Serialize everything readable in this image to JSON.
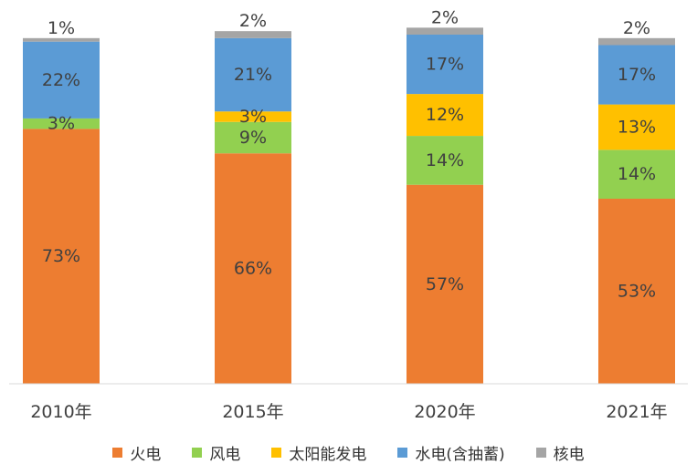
{
  "chart_data": {
    "type": "bar",
    "stacked": true,
    "percent_stacked": true,
    "categories": [
      "2010年",
      "2015年",
      "2020年",
      "2021年"
    ],
    "series": [
      {
        "name": "火电",
        "color": "#ed7d31",
        "values": [
          73,
          66,
          57,
          53
        ],
        "labels": [
          "73%",
          "66%",
          "57%",
          "53%"
        ]
      },
      {
        "name": "风电",
        "color": "#92d050",
        "values": [
          3,
          9,
          14,
          14
        ],
        "labels": [
          "3%",
          "9%",
          "14%",
          "14%"
        ]
      },
      {
        "name": "太阳能发电",
        "color": "#ffc000",
        "values": [
          0,
          3,
          12,
          13
        ],
        "labels": [
          "",
          "3%",
          "12%",
          "13%"
        ]
      },
      {
        "name": "水电(含抽蓄)",
        "color": "#5b9bd5",
        "values": [
          22,
          21,
          17,
          17
        ],
        "labels": [
          "22%",
          "21%",
          "17%",
          "17%"
        ]
      },
      {
        "name": "核电",
        "color": "#a5a5a5",
        "values": [
          1,
          2,
          2,
          2
        ],
        "labels": [
          "1%",
          "2%",
          "2%",
          "2%"
        ]
      }
    ],
    "ylim": [
      0,
      100
    ],
    "grid": false,
    "legend_position": "bottom"
  }
}
